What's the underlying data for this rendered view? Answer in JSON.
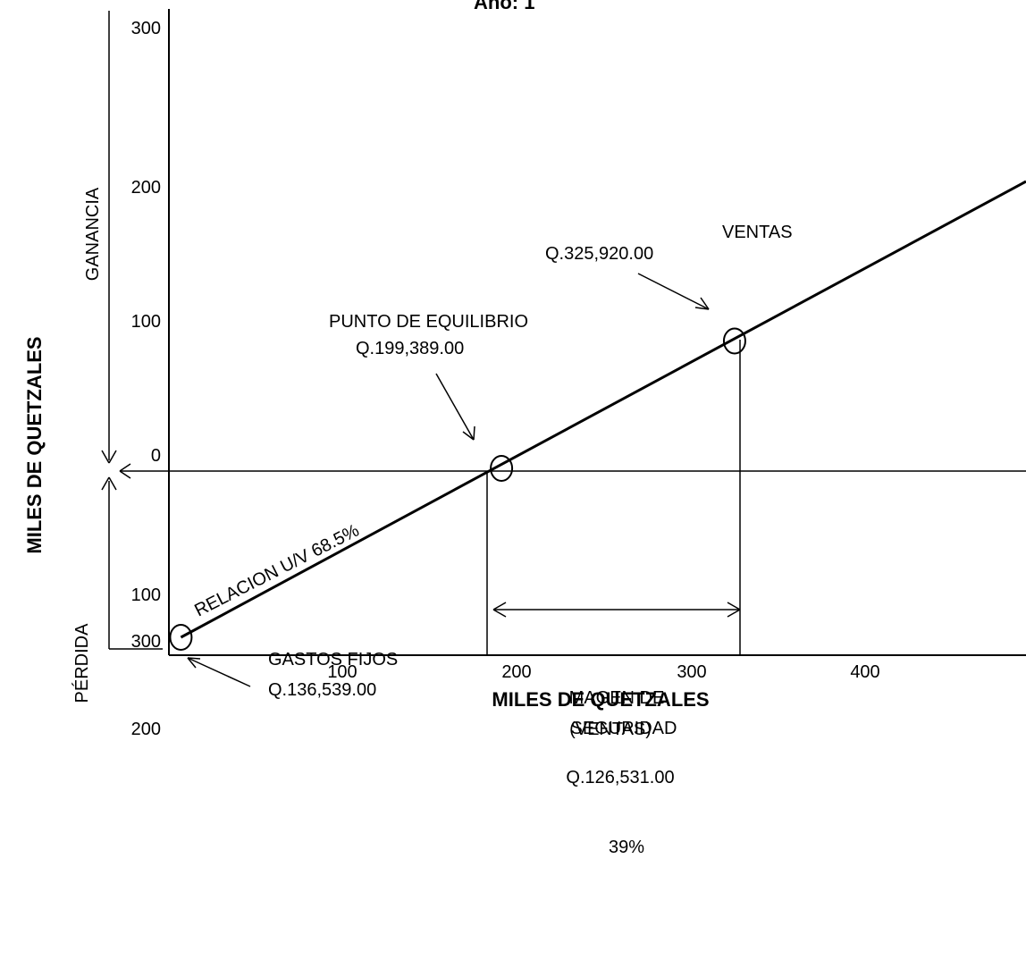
{
  "chart_data": {
    "type": "line",
    "title": "Año: 1",
    "xlabel": "MILES DE QUETZALES",
    "xlabel_sub": "(VENTAS)",
    "ylabel": "MILES DE QUETZALES",
    "y_region_top": "GANANCIA",
    "y_region_bottom": "PÉRDIDA",
    "xlim": [
      0,
      500
    ],
    "ylim": [
      -300,
      300
    ],
    "x_ticks": [
      {
        "value": 100,
        "label": "100"
      },
      {
        "value": 200,
        "label": "200"
      },
      {
        "value": 300,
        "label": "300"
      },
      {
        "value": 400,
        "label": "400"
      }
    ],
    "y_ticks": [
      {
        "value": 300,
        "label": "300"
      },
      {
        "value": 200,
        "label": "200"
      },
      {
        "value": 100,
        "label": "100"
      },
      {
        "value": 0,
        "label": "0"
      },
      {
        "value": -100,
        "label": "100"
      },
      {
        "value": -200,
        "label": "200"
      },
      {
        "value": -300,
        "label": "300"
      }
    ],
    "series": [
      {
        "name": "RELACION U/V 68.5%",
        "points": [
          [
            7,
            -124
          ],
          [
            500,
            216
          ]
        ]
      }
    ],
    "key_points": [
      {
        "x": 7,
        "y": -124
      },
      {
        "x": 194,
        "y": 2
      },
      {
        "x": 330,
        "y": 97
      }
    ],
    "annotations": {
      "ventas_label": "VENTAS",
      "ventas_value": "Q.325,920.00",
      "equilibrio_label": "PUNTO DE EQUILIBRIO",
      "equilibrio_value": "Q.199,389.00",
      "gastos_label": "GASTOS FIJOS",
      "gastos_value": "Q.136,539.00",
      "margen_label_1": "MAGEN DE",
      "margen_label_2": "SEGURIDAD",
      "margen_value": "Q.126,531.00",
      "margen_pct": "39%",
      "relacion_label": "RELACION U/V 68.5%"
    },
    "grid": false
  }
}
